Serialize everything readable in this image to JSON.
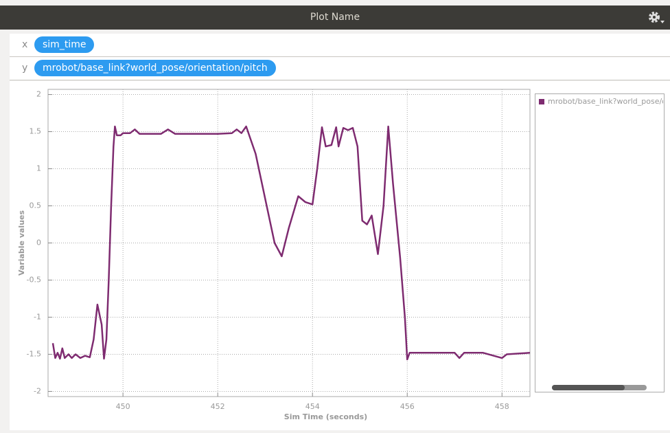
{
  "header": {
    "title": "Plot Name"
  },
  "fields": [
    {
      "label": "x",
      "value": "sim_time"
    },
    {
      "label": "y",
      "value": "mrobot/base_link?world_pose/orientation/pitch"
    }
  ],
  "chart_data": {
    "type": "line",
    "xlabel": "Sim Time (seconds)",
    "ylabel": "Variable values",
    "x": [
      448.52,
      448.57,
      448.62,
      448.67,
      448.72,
      448.77,
      448.85,
      448.92,
      449.0,
      449.1,
      449.2,
      449.3,
      449.38,
      449.46,
      449.55,
      449.6,
      449.65,
      449.7,
      449.75,
      449.8,
      449.83,
      449.87,
      449.95,
      450.0,
      450.15,
      450.25,
      450.35,
      450.8,
      450.95,
      451.1,
      452.0,
      452.3,
      452.4,
      452.5,
      452.6,
      452.8,
      453.0,
      453.2,
      453.35,
      453.5,
      453.7,
      453.85,
      454.0,
      454.1,
      454.2,
      454.28,
      454.4,
      454.5,
      454.55,
      454.65,
      454.75,
      454.85,
      454.95,
      455.05,
      455.15,
      455.25,
      455.38,
      455.5,
      455.6,
      455.7,
      455.85,
      455.95,
      456.0,
      456.05,
      457.0,
      457.1,
      457.2,
      457.6,
      458.0,
      458.1,
      458.59
    ],
    "series": [
      {
        "name": "mrobot/base_link?world_pose/orientation/pitch",
        "color": "#7e2b70",
        "values": [
          -1.35,
          -1.55,
          -1.48,
          -1.56,
          -1.42,
          -1.55,
          -1.5,
          -1.55,
          -1.5,
          -1.55,
          -1.52,
          -1.54,
          -1.3,
          -0.83,
          -1.1,
          -1.56,
          -1.3,
          -0.5,
          0.5,
          1.3,
          1.57,
          1.45,
          1.45,
          1.48,
          1.48,
          1.53,
          1.47,
          1.47,
          1.53,
          1.47,
          1.47,
          1.48,
          1.53,
          1.48,
          1.57,
          1.2,
          0.6,
          0.0,
          -0.18,
          0.2,
          0.63,
          0.55,
          0.52,
          1.0,
          1.56,
          1.3,
          1.32,
          1.56,
          1.3,
          1.55,
          1.52,
          1.55,
          1.3,
          0.3,
          0.25,
          0.37,
          -0.15,
          0.5,
          1.57,
          0.8,
          -0.2,
          -1.0,
          -1.57,
          -1.48,
          -1.48,
          -1.55,
          -1.48,
          -1.48,
          -1.55,
          -1.5,
          -1.48
        ]
      }
    ],
    "xlim": [
      448.52,
      458.59
    ],
    "ylim": [
      -2.07,
      2.07
    ],
    "xticks": [
      450,
      452,
      454,
      456,
      458
    ],
    "yticks": [
      2,
      1.5,
      1,
      0.5,
      0,
      -0.5,
      -1,
      -1.5,
      -2
    ],
    "grid": true,
    "legend": "right"
  }
}
